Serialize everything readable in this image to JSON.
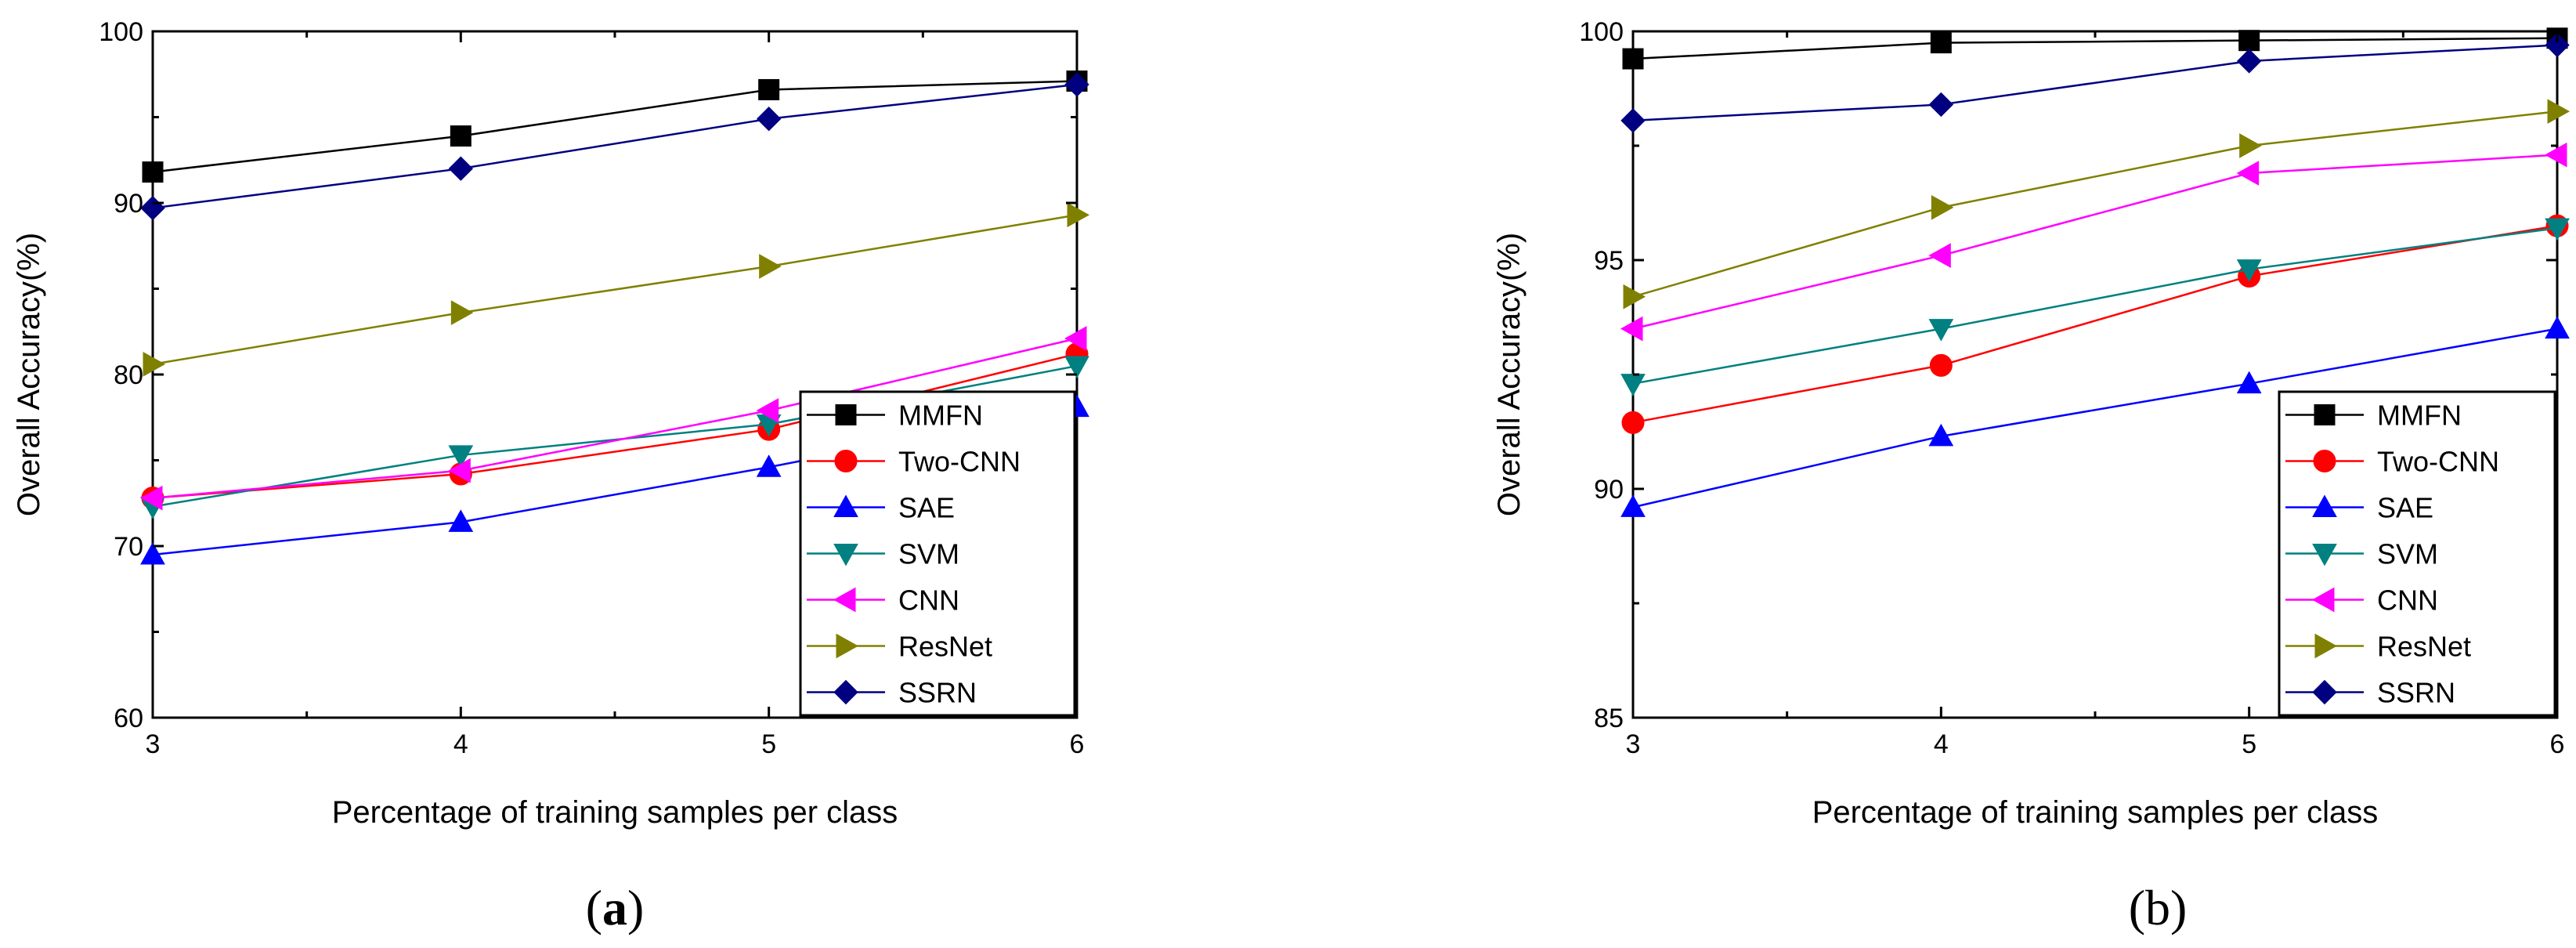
{
  "series_styles": [
    {
      "name": "MMFN",
      "color": "#000000",
      "marker": "square"
    },
    {
      "name": "Two-CNN",
      "color": "#ff0000",
      "marker": "circle"
    },
    {
      "name": "SAE",
      "color": "#0000ff",
      "marker": "triangle-up"
    },
    {
      "name": "SVM",
      "color": "#008080",
      "marker": "triangle-down"
    },
    {
      "name": "CNN",
      "color": "#ff00ff",
      "marker": "triangle-left"
    },
    {
      "name": "ResNet",
      "color": "#808000",
      "marker": "triangle-right"
    },
    {
      "name": "SSRN",
      "color": "#000080",
      "marker": "diamond"
    }
  ],
  "chart_data": [
    {
      "type": "line",
      "caption_open": "(",
      "caption_letter": "a",
      "caption_close": ")",
      "xlabel": "Percentage of training samples per class",
      "ylabel": "Overall Accuracy(%)",
      "x": [
        3,
        4,
        5,
        6
      ],
      "xticks": [
        "3",
        "4",
        "5",
        "6"
      ],
      "ylim": [
        60,
        100
      ],
      "yticks": [
        "60",
        "70",
        "80",
        "90",
        "100"
      ],
      "ytick_values": [
        60,
        70,
        80,
        90,
        100
      ],
      "grid": false,
      "legend_position": "lower-right",
      "series": [
        {
          "name": "MMFN",
          "values": [
            91.8,
            93.9,
            96.6,
            97.1
          ]
        },
        {
          "name": "Two-CNN",
          "values": [
            72.8,
            74.2,
            76.8,
            81.2
          ]
        },
        {
          "name": "SAE",
          "values": [
            69.5,
            71.4,
            74.6,
            78.1
          ]
        },
        {
          "name": "SVM",
          "values": [
            72.3,
            75.3,
            77.1,
            80.5
          ]
        },
        {
          "name": "CNN",
          "values": [
            72.8,
            74.4,
            77.9,
            82.1
          ]
        },
        {
          "name": "ResNet",
          "values": [
            80.6,
            83.6,
            86.3,
            89.3
          ]
        },
        {
          "name": "SSRN",
          "values": [
            89.7,
            92.0,
            94.9,
            96.9
          ]
        }
      ]
    },
    {
      "type": "line",
      "caption_open": "(",
      "caption_letter": "b",
      "caption_close": ")",
      "xlabel": "Percentage of training samples per class",
      "ylabel": "Overall Accuracy(%)",
      "x": [
        3,
        4,
        5,
        6
      ],
      "xticks": [
        "3",
        "4",
        "5",
        "6"
      ],
      "ylim": [
        85,
        100
      ],
      "yticks": [
        "85",
        "90",
        "95",
        "100"
      ],
      "ytick_values": [
        85,
        90,
        95,
        100
      ],
      "grid": false,
      "legend_position": "lower-right",
      "series": [
        {
          "name": "MMFN",
          "values": [
            99.4,
            99.75,
            99.8,
            99.85
          ]
        },
        {
          "name": "Two-CNN",
          "values": [
            91.45,
            92.7,
            94.65,
            95.75
          ]
        },
        {
          "name": "SAE",
          "values": [
            89.6,
            91.15,
            92.3,
            93.5
          ]
        },
        {
          "name": "SVM",
          "values": [
            92.3,
            93.5,
            94.8,
            95.7
          ]
        },
        {
          "name": "CNN",
          "values": [
            93.5,
            95.1,
            96.9,
            97.3
          ]
        },
        {
          "name": "ResNet",
          "values": [
            94.2,
            96.15,
            97.5,
            98.25
          ]
        },
        {
          "name": "SSRN",
          "values": [
            98.05,
            98.4,
            99.35,
            99.7
          ]
        }
      ]
    }
  ]
}
